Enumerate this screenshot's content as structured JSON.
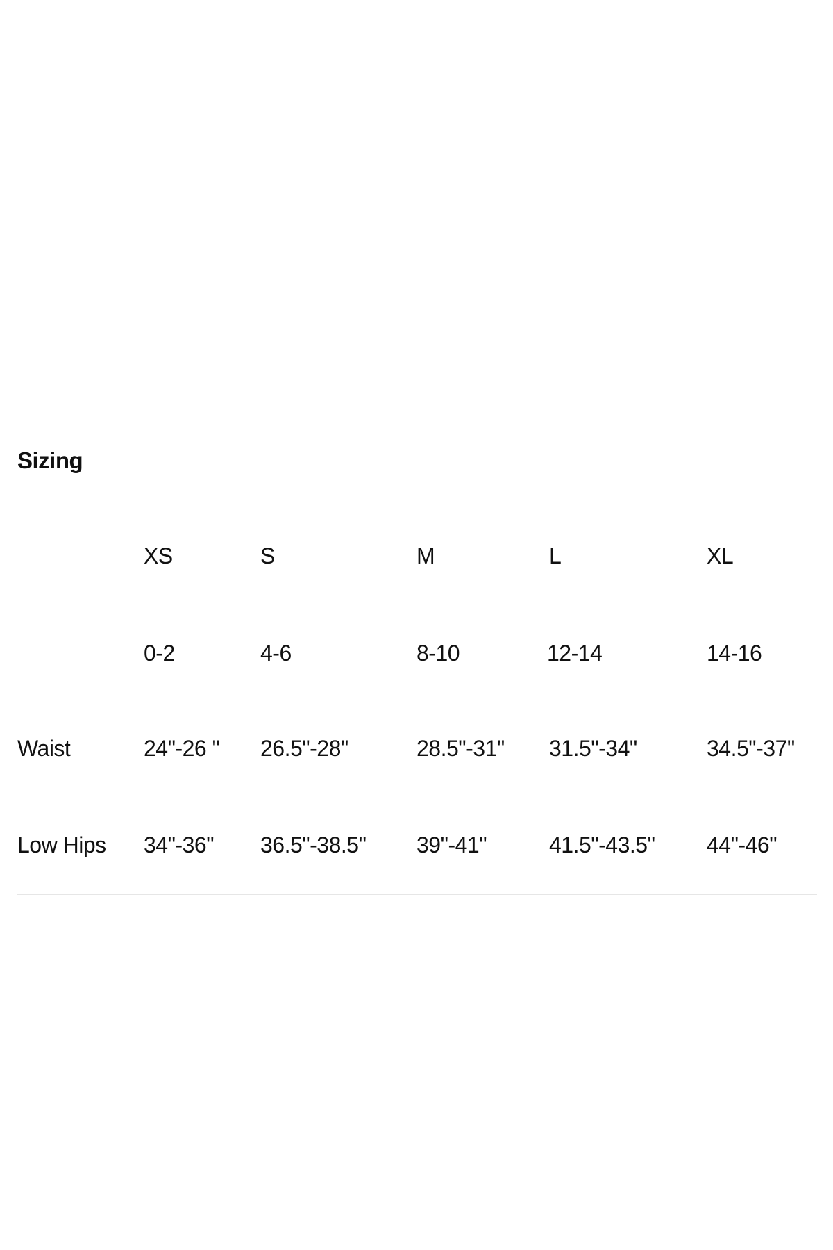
{
  "title": "Sizing",
  "table": {
    "columns": [
      "XS",
      "S",
      "M",
      "L",
      "XL"
    ],
    "rows": [
      {
        "label": "",
        "values": [
          "0-2",
          "4-6",
          "8-10",
          "12-14",
          "14-16"
        ]
      },
      {
        "label": "Waist",
        "values": [
          "24\"-26 \"",
          "26.5\"-28\"",
          "28.5\"-31\"",
          "31.5\"-34\"",
          "34.5\"-37\""
        ]
      },
      {
        "label": "Low Hips",
        "values": [
          "34\"-36\"",
          "36.5\"-38.5\"",
          "39\"-41\"",
          "41.5\"-43.5\"",
          "44\"-46\""
        ]
      }
    ]
  }
}
